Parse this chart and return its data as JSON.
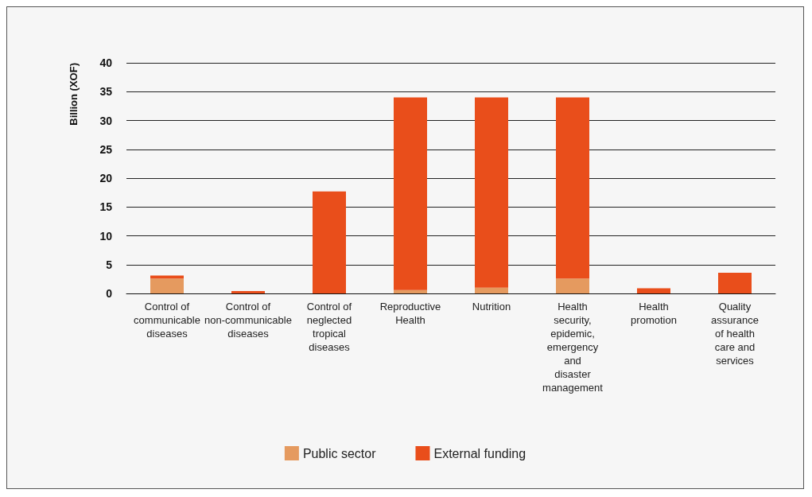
{
  "chart_data": {
    "type": "bar",
    "ylabel": "Billion (XOF)",
    "stacked": true,
    "categories": [
      "Control of communicable diseases",
      "Control of non-communicable diseases",
      "Control of neglected tropical diseases",
      "Reproductive Health",
      "Nutrition",
      "Health security, epidemic, emergency and disaster management",
      "Health promotion",
      "Quality assurance of health care and services"
    ],
    "series": [
      {
        "name": "Public sector",
        "color": "#e59a5f",
        "values": [
          2.6,
          0,
          0,
          0.6,
          1.0,
          2.6,
          0,
          0
        ]
      },
      {
        "name": "External funding",
        "color": "#e94e1b",
        "values": [
          0.5,
          0.4,
          17.7,
          33.4,
          33.0,
          31.4,
          0.9,
          3.6
        ]
      }
    ],
    "ylim": [
      0,
      40
    ],
    "yticks": [
      0,
      5,
      10,
      15,
      20,
      25,
      30,
      35,
      40
    ],
    "grid": "y",
    "legend": "bottom"
  }
}
